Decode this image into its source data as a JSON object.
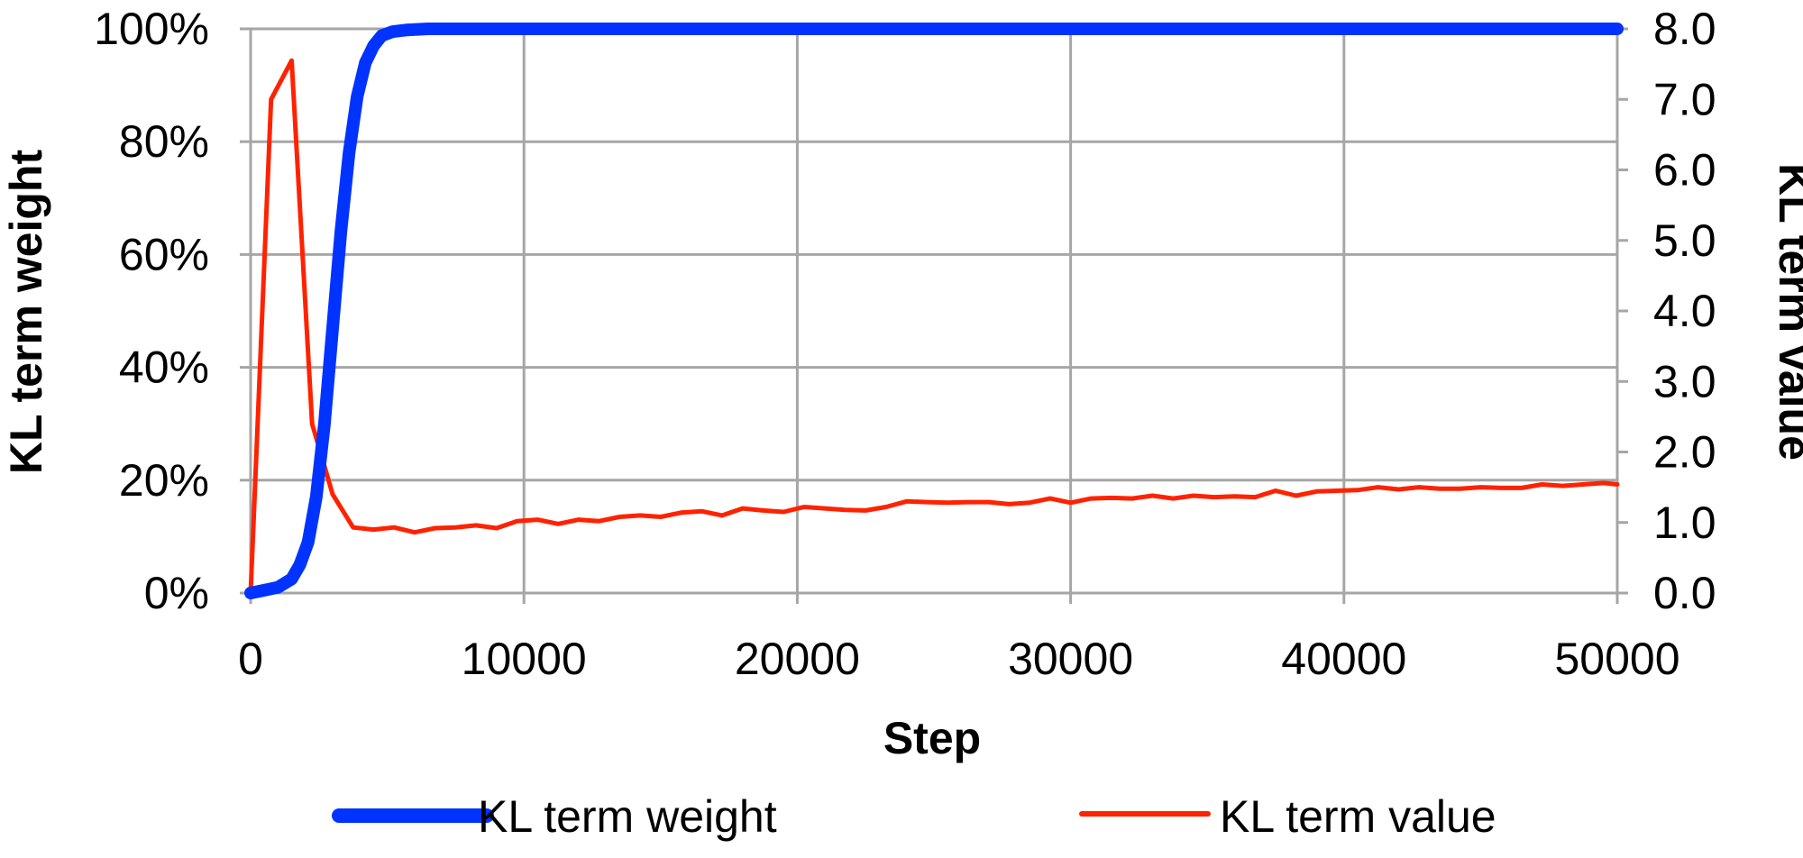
{
  "chart_data": {
    "type": "line",
    "title": "",
    "xlabel": "Step",
    "ylabel_left": "KL term weight",
    "ylabel_right": "KL term value",
    "xlim": [
      0,
      50000
    ],
    "ylim_left": [
      0,
      100
    ],
    "ylim_right": [
      0,
      8
    ],
    "grid": true,
    "legend_position": "bottom",
    "x_ticks": [
      "0",
      "10000",
      "20000",
      "30000",
      "40000",
      "50000"
    ],
    "y_left_ticks": [
      "0%",
      "20%",
      "40%",
      "60%",
      "80%",
      "100%"
    ],
    "y_right_ticks": [
      "0.0",
      "1.0",
      "2.0",
      "3.0",
      "4.0",
      "5.0",
      "6.0",
      "7.0",
      "8.0"
    ],
    "series": [
      {
        "name": "KL term weight",
        "axis": "left",
        "color": "#0033ff",
        "x": [
          0,
          500,
          1000,
          1500,
          1800,
          2100,
          2400,
          2700,
          3000,
          3300,
          3600,
          3900,
          4200,
          4500,
          4800,
          5200,
          5700,
          6500,
          8000,
          50000
        ],
        "y": [
          0,
          0.5,
          1,
          2.5,
          5,
          9,
          17,
          30,
          47,
          64,
          78,
          88,
          94,
          97,
          98.8,
          99.5,
          99.8,
          100,
          100,
          100
        ]
      },
      {
        "name": "KL term value",
        "axis": "right",
        "color": "#ff2200",
        "x": [
          0,
          750,
          1500,
          2250,
          3000,
          3750,
          4500,
          5250,
          6000,
          6750,
          7500,
          8250,
          9000,
          9750,
          10500,
          11250,
          12000,
          12750,
          13500,
          14250,
          15000,
          15750,
          16500,
          17250,
          18000,
          18750,
          19500,
          20250,
          21000,
          21750,
          22500,
          23250,
          24000,
          24750,
          25500,
          26250,
          27000,
          27750,
          28500,
          29250,
          30000,
          30750,
          31500,
          32250,
          33000,
          33750,
          34500,
          35250,
          36000,
          36750,
          37500,
          38250,
          39000,
          39750,
          40500,
          41250,
          42000,
          42750,
          43500,
          44250,
          45000,
          45750,
          46500,
          47250,
          48000,
          48750,
          49500,
          50000
        ],
        "y": [
          0,
          7.0,
          7.55,
          2.4,
          1.4,
          0.93,
          0.9,
          0.93,
          0.86,
          0.92,
          0.93,
          0.96,
          0.92,
          1.02,
          1.04,
          0.98,
          1.04,
          1.02,
          1.08,
          1.1,
          1.08,
          1.14,
          1.16,
          1.1,
          1.2,
          1.17,
          1.15,
          1.22,
          1.2,
          1.18,
          1.17,
          1.22,
          1.3,
          1.29,
          1.28,
          1.29,
          1.29,
          1.26,
          1.28,
          1.34,
          1.28,
          1.34,
          1.35,
          1.34,
          1.38,
          1.34,
          1.38,
          1.36,
          1.37,
          1.36,
          1.45,
          1.38,
          1.44,
          1.45,
          1.46,
          1.5,
          1.47,
          1.5,
          1.48,
          1.48,
          1.5,
          1.49,
          1.49,
          1.54,
          1.52,
          1.54,
          1.56,
          1.54
        ]
      }
    ]
  }
}
